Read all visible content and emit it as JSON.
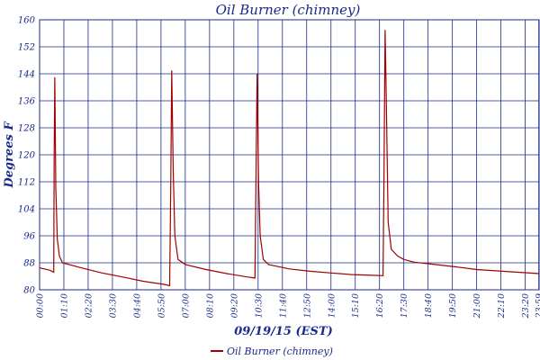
{
  "chart_data": {
    "type": "line",
    "title": "Oil Burner (chimney)",
    "xlabel": "09/19/15 (EST)",
    "ylabel": "Degrees F",
    "ylim": [
      80,
      160
    ],
    "yticks": [
      80,
      88,
      96,
      104,
      112,
      120,
      128,
      136,
      144,
      152,
      160
    ],
    "xlim_hours": [
      0,
      24
    ],
    "xticks": [
      "00:00",
      "01:10",
      "02:20",
      "03:30",
      "04:40",
      "05:50",
      "07:00",
      "08:10",
      "09:20",
      "10:30",
      "11:40",
      "12:50",
      "14:00",
      "15:10",
      "16:20",
      "17:30",
      "18:40",
      "19:50",
      "21:00",
      "22:10",
      "23:20",
      "23:59"
    ],
    "grid": true,
    "legend_position": "bottom",
    "series": [
      {
        "name": "Oil Burner (chimney)",
        "color": "#a00000",
        "points": [
          [
            0.0,
            86.5
          ],
          [
            0.5,
            85.8
          ],
          [
            0.68,
            85.2
          ],
          [
            0.7,
            120
          ],
          [
            0.73,
            143
          ],
          [
            0.78,
            110
          ],
          [
            0.85,
            95
          ],
          [
            0.95,
            90
          ],
          [
            1.1,
            88.0
          ],
          [
            2.0,
            86.5
          ],
          [
            3.0,
            85.0
          ],
          [
            4.0,
            83.8
          ],
          [
            5.0,
            82.5
          ],
          [
            6.0,
            81.6
          ],
          [
            6.25,
            81.2
          ],
          [
            6.3,
            110
          ],
          [
            6.35,
            145
          ],
          [
            6.42,
            115
          ],
          [
            6.5,
            96
          ],
          [
            6.65,
            89
          ],
          [
            7.0,
            87.5
          ],
          [
            8.0,
            86.0
          ],
          [
            9.0,
            84.8
          ],
          [
            10.0,
            83.8
          ],
          [
            10.35,
            83.5
          ],
          [
            10.4,
            115
          ],
          [
            10.45,
            144
          ],
          [
            10.52,
            112
          ],
          [
            10.6,
            96
          ],
          [
            10.75,
            89
          ],
          [
            11.0,
            87.5
          ],
          [
            12.0,
            86.2
          ],
          [
            13.0,
            85.5
          ],
          [
            14.0,
            85.0
          ],
          [
            15.0,
            84.5
          ],
          [
            16.0,
            84.3
          ],
          [
            16.5,
            84.2
          ],
          [
            16.55,
            115
          ],
          [
            16.6,
            157
          ],
          [
            16.65,
            140
          ],
          [
            16.75,
            100
          ],
          [
            16.9,
            92
          ],
          [
            17.2,
            90
          ],
          [
            17.5,
            89
          ],
          [
            18.0,
            88.2
          ],
          [
            19.0,
            87.5
          ],
          [
            20.0,
            86.8
          ],
          [
            21.0,
            86.0
          ],
          [
            22.0,
            85.6
          ],
          [
            23.0,
            85.2
          ],
          [
            24.0,
            84.8
          ]
        ]
      }
    ]
  }
}
